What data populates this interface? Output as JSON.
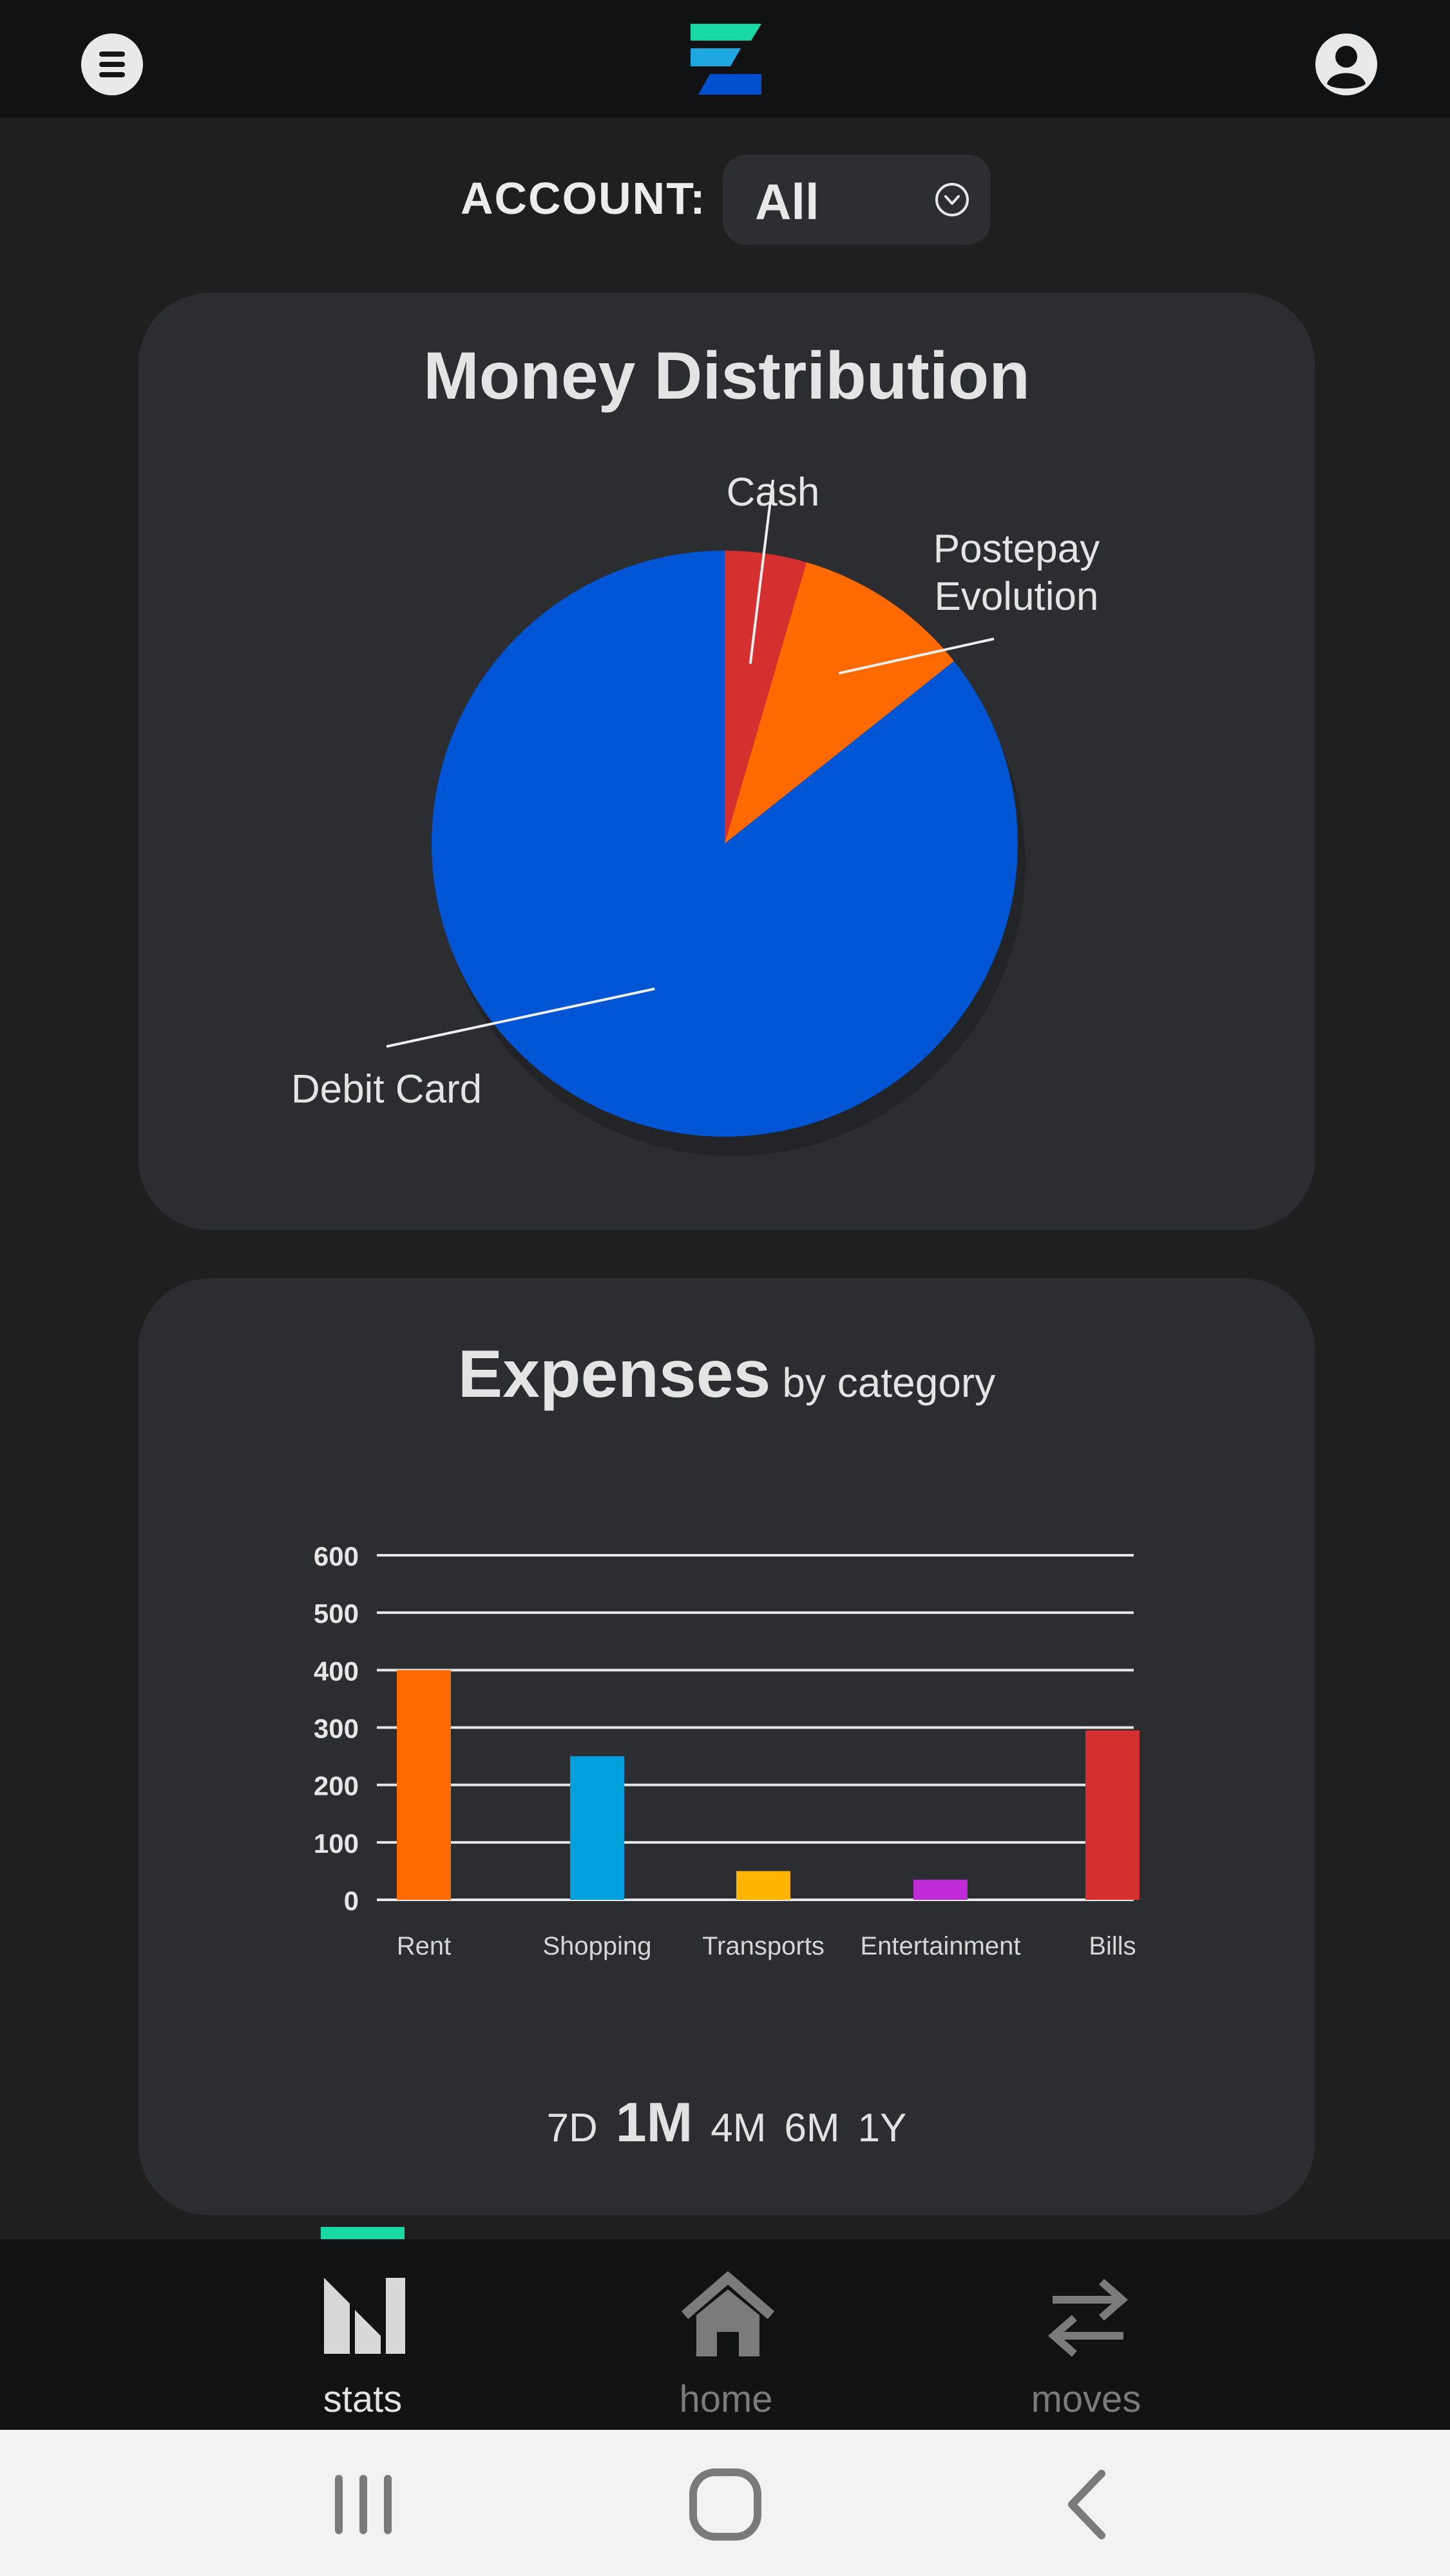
{
  "header": {
    "menu_icon": "hamburger-menu-icon",
    "logo_icon": "app-logo-z-icon",
    "profile_icon": "user-profile-icon",
    "colors": {
      "logo_top": "#16d9a3",
      "logo_mid": "#1ea7e0",
      "logo_bottom": "#0050d0"
    }
  },
  "account": {
    "label": "ACCOUNT:",
    "selected": "All",
    "dropdown_icon": "chevron-down-circle-icon"
  },
  "money_distribution": {
    "title": "Money Distribution",
    "chart_data": {
      "type": "pie",
      "slices": [
        {
          "label": "Cash",
          "value": 4.5,
          "color": "#d52f2f"
        },
        {
          "label": "Postepay Evolution",
          "value": 9.8,
          "color": "#ff6a00"
        },
        {
          "label": "Debit Card",
          "value": 85.7,
          "color": "#0055d4"
        }
      ]
    }
  },
  "expenses": {
    "title": "Expenses",
    "subtitle": "by category",
    "chart_data": {
      "type": "bar",
      "categories": [
        "Rent",
        "Shopping",
        "Transports",
        "Entertainment",
        "Bills"
      ],
      "values": [
        400,
        250,
        50,
        35,
        295
      ],
      "colors": [
        "#ff6a00",
        "#009fdd",
        "#ffb400",
        "#c02bd8",
        "#d52f2f"
      ],
      "yticks": [
        "0",
        "100",
        "200",
        "300",
        "400",
        "500",
        "600"
      ],
      "ylim": [
        0,
        600
      ],
      "grid": true
    },
    "periods": [
      "7D",
      "1M",
      "4M",
      "6M",
      "1Y"
    ],
    "active_period": "1M"
  },
  "nav": {
    "items": [
      {
        "label": "stats",
        "icon": "stats-chart-icon",
        "active": true
      },
      {
        "label": "home",
        "icon": "home-icon",
        "active": false
      },
      {
        "label": "moves",
        "icon": "transfer-arrows-icon",
        "active": false
      }
    ],
    "accent": "#16d9a3"
  },
  "system_nav": {
    "recents_icon": "recent-apps-icon",
    "home_icon": "home-circle-icon",
    "back_icon": "back-chevron-icon"
  }
}
